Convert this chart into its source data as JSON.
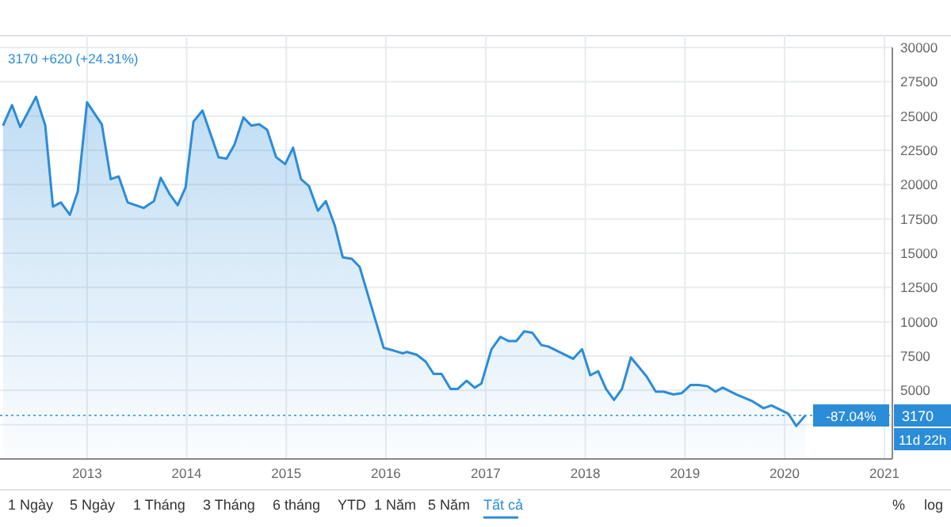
{
  "chart_data": {
    "type": "area",
    "x": [
      "2012-02-28",
      "2012-04-01",
      "2012-05-01",
      "2012-06-28",
      "2012-08-01",
      "2012-08-29",
      "2012-09-27",
      "2012-10-30",
      "2012-11-28",
      "2013-01-01",
      "2013-02-24",
      "2013-03-29",
      "2013-04-27",
      "2013-05-30",
      "2013-07-28",
      "2013-09-03",
      "2013-09-28",
      "2013-10-31",
      "2013-11-29",
      "2013-12-28",
      "2014-01-26",
      "2014-02-28",
      "2014-04-28",
      "2014-05-27",
      "2014-06-25",
      "2014-07-28",
      "2014-08-26",
      "2014-09-24",
      "2014-10-23",
      "2014-11-25",
      "2014-12-28",
      "2015-01-26",
      "2015-02-24",
      "2015-03-25",
      "2015-04-27",
      "2015-05-26",
      "2015-06-28",
      "2015-07-27",
      "2015-08-29",
      "2015-09-27",
      "2015-12-24",
      "2016-01-30",
      "2016-03-03",
      "2016-03-17",
      "2016-04-23",
      "2016-05-26",
      "2016-06-24",
      "2016-07-23",
      "2016-08-25",
      "2016-09-20",
      "2016-10-23",
      "2016-11-21",
      "2016-12-16",
      "2017-01-22",
      "2017-02-24",
      "2017-03-25",
      "2017-04-23",
      "2017-05-22",
      "2017-06-21",
      "2017-07-24",
      "2017-08-18",
      "2017-11-17",
      "2017-12-20",
      "2018-01-19",
      "2018-02-17",
      "2018-03-18",
      "2018-04-16",
      "2018-05-15",
      "2018-06-17",
      "2018-08-14",
      "2018-09-16",
      "2018-10-15",
      "2018-11-20",
      "2018-12-20",
      "2019-01-22",
      "2019-02-20",
      "2019-03-25",
      "2019-04-23",
      "2019-05-19",
      "2019-07-09",
      "2019-09-06",
      "2019-10-16",
      "2019-11-14",
      "2020-01-15",
      "2020-02-13",
      "2020-03-17"
    ],
    "series": [
      {
        "color": "#2b8cd8",
        "values": [
          24300,
          25800,
          24200,
          26400,
          24300,
          18400,
          18700,
          17800,
          19500,
          26000,
          24400,
          20400,
          20600,
          18700,
          18300,
          18800,
          20500,
          19300,
          18500,
          19800,
          24600,
          25400,
          22000,
          21900,
          22900,
          24900,
          24300,
          24400,
          24000,
          22000,
          21500,
          22700,
          20400,
          19900,
          18100,
          18800,
          17000,
          14700,
          14600,
          14000,
          8100,
          7900,
          7700,
          7800,
          7600,
          7100,
          6200,
          6200,
          5100,
          5100,
          5700,
          5200,
          5500,
          8000,
          8900,
          8600,
          8600,
          9300,
          9200,
          8300,
          8200,
          7300,
          8000,
          6100,
          6400,
          5100,
          4300,
          5100,
          7400,
          6000,
          4900,
          4900,
          4700,
          4800,
          5400,
          5400,
          5300,
          4900,
          5200,
          4700,
          4200,
          3700,
          3900,
          3300,
          2400,
          3170
        ]
      }
    ],
    "xlim": [
      "2012-02-17",
      "2021-01-30"
    ],
    "xticks": [
      {
        "value": "2013",
        "label": "2013"
      },
      {
        "value": "2014",
        "label": "2014"
      },
      {
        "value": "2015",
        "label": "2015"
      },
      {
        "value": "2016",
        "label": "2016"
      },
      {
        "value": "2017",
        "label": "2017"
      },
      {
        "value": "2018",
        "label": "2018"
      },
      {
        "value": "2019",
        "label": "2019"
      },
      {
        "value": "2020",
        "label": "2020"
      },
      {
        "value": "2021",
        "label": "2021"
      }
    ],
    "ylim": [
      0,
      30000
    ],
    "yticks": [
      {
        "value": 2500,
        "label": null
      },
      5000,
      7500,
      10000,
      12500,
      15000,
      17500,
      20000,
      22500,
      25000,
      27500,
      30000
    ],
    "grid": true,
    "marker": "none",
    "line_style": "solid",
    "ref_lines": [
      {
        "axis": "y",
        "value": 3170,
        "label": "3170",
        "color": "#2b8cd8",
        "line_style": "dotted"
      }
    ],
    "annotations": [
      "3170  +620 (+24.31%)",
      "-87.04%",
      "11d 22h",
      "1 Ngày",
      "5 Ngày",
      "1 Tháng",
      "3 Tháng",
      "6 tháng",
      "YTD",
      "1 Năm",
      "5 Năm",
      "Tất cả",
      "%",
      "log"
    ]
  }
}
